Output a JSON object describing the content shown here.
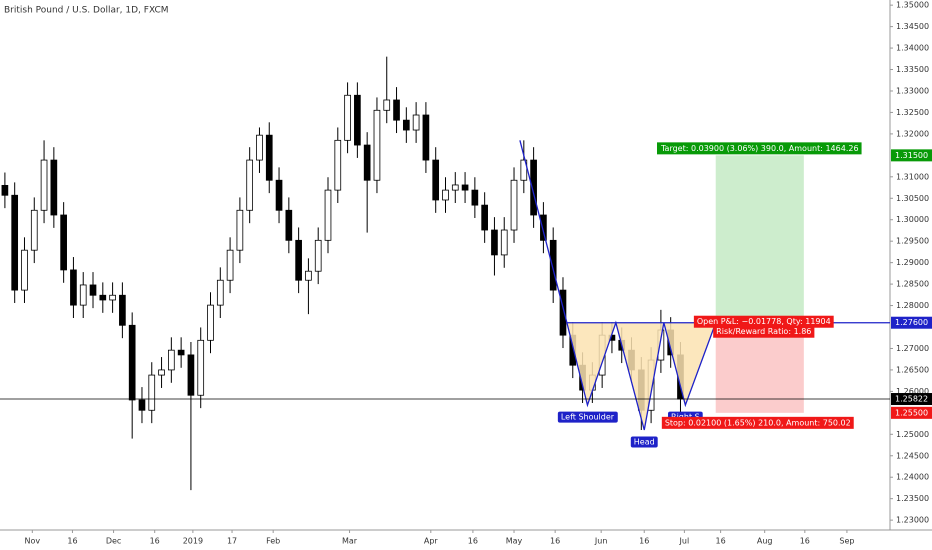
{
  "chart_data": {
    "type": "candlestick",
    "title": "British Pound / U.S. Dollar, 1D, FXCM",
    "open": [
      1.308,
      1.3057,
      1.2836,
      1.2929,
      1.3022,
      1.3139,
      1.3011,
      1.2883,
      1.2801,
      1.2848,
      1.2824,
      1.2813,
      1.2824,
      1.2754,
      1.258,
      1.2556,
      1.2638,
      1.265,
      1.2696,
      1.2685,
      1.2591,
      1.2719,
      1.2801,
      1.2859,
      1.2929,
      1.3022,
      1.3139,
      1.3197,
      1.3092,
      1.3022,
      1.2952,
      1.2859,
      1.288,
      1.2952,
      1.3069,
      1.3185,
      1.329,
      1.3174,
      1.3092,
      1.3255,
      1.3279,
      1.3232,
      1.3209,
      1.3244,
      1.3139,
      1.3046,
      1.3069,
      1.3081,
      1.3069,
      1.3034,
      1.2976,
      1.2918,
      1.2976,
      1.3092,
      1.3139,
      1.3011,
      1.2952,
      1.2836,
      1.2731,
      1.2661,
      1.2603,
      1.2638,
      1.2731,
      1.2719,
      1.2696,
      1.265,
      1.2556,
      1.2673,
      1.2743,
      1.2685
    ],
    "high": [
      1.311,
      1.3087,
      1.2959,
      1.3052,
      1.3185,
      1.3169,
      1.3041,
      1.2913,
      1.2878,
      1.2878,
      1.2854,
      1.2854,
      1.2854,
      1.2784,
      1.261,
      1.2668,
      1.268,
      1.2726,
      1.2726,
      1.2715,
      1.2749,
      1.2831,
      1.2889,
      1.2959,
      1.3052,
      1.3169,
      1.3215,
      1.3227,
      1.3122,
      1.3052,
      1.2982,
      1.291,
      1.2982,
      1.3099,
      1.3215,
      1.332,
      1.332,
      1.3204,
      1.3285,
      1.338,
      1.3309,
      1.3262,
      1.3274,
      1.3274,
      1.3169,
      1.3099,
      1.3111,
      1.3111,
      1.3099,
      1.3064,
      1.3006,
      1.3006,
      1.3122,
      1.3185,
      1.3169,
      1.3041,
      1.2982,
      1.2866,
      1.2761,
      1.2691,
      1.2668,
      1.2761,
      1.2761,
      1.2749,
      1.2726,
      1.268,
      1.2703,
      1.279,
      1.2773,
      1.2715
    ],
    "low": [
      1.3027,
      1.2806,
      1.2806,
      1.2899,
      1.2992,
      1.2981,
      1.2853,
      1.2771,
      1.2771,
      1.2794,
      1.2783,
      1.2783,
      1.2724,
      1.249,
      1.2526,
      1.2526,
      1.2608,
      1.262,
      1.2655,
      1.237,
      1.2561,
      1.2689,
      1.2771,
      1.2829,
      1.2899,
      1.2992,
      1.3109,
      1.3062,
      1.2992,
      1.2922,
      1.2829,
      1.278,
      1.285,
      1.2922,
      1.3039,
      1.3155,
      1.3144,
      1.297,
      1.3062,
      1.3225,
      1.3202,
      1.3179,
      1.3179,
      1.3109,
      1.3016,
      1.3016,
      1.3039,
      1.3039,
      1.3004,
      1.2946,
      1.287,
      1.2888,
      1.2946,
      1.3062,
      1.2981,
      1.2922,
      1.2806,
      1.2701,
      1.2631,
      1.2573,
      1.2573,
      1.2608,
      1.2689,
      1.2666,
      1.262,
      1.251,
      1.2526,
      1.2643,
      1.2655,
      1.2552
    ],
    "close": [
      1.3057,
      1.2836,
      1.2929,
      1.3022,
      1.3139,
      1.3011,
      1.2883,
      1.2801,
      1.2848,
      1.2824,
      1.2813,
      1.2824,
      1.2754,
      1.258,
      1.2556,
      1.2638,
      1.265,
      1.2696,
      1.2685,
      1.2591,
      1.2719,
      1.2801,
      1.2859,
      1.2929,
      1.3022,
      1.3139,
      1.3197,
      1.3092,
      1.3022,
      1.2952,
      1.2859,
      1.288,
      1.2952,
      1.3069,
      1.3185,
      1.329,
      1.3174,
      1.3092,
      1.3255,
      1.3279,
      1.3232,
      1.3209,
      1.3244,
      1.3139,
      1.3046,
      1.3069,
      1.3081,
      1.3069,
      1.3034,
      1.2976,
      1.2918,
      1.2976,
      1.3092,
      1.3139,
      1.3011,
      1.2952,
      1.2836,
      1.2731,
      1.2661,
      1.2603,
      1.2638,
      1.2731,
      1.2719,
      1.2696,
      1.265,
      1.2556,
      1.2673,
      1.2743,
      1.2685,
      1.2582
    ],
    "up_color": "#ffffff",
    "down_color": "#000000",
    "wick_color": "#000000",
    "xlim": [
      -0.5,
      90.4
    ],
    "xticks": [
      {
        "value": 2.8,
        "label": "Nov"
      },
      {
        "value": 6.9,
        "label": "16"
      },
      {
        "value": 11.1,
        "label": "Dec"
      },
      {
        "value": 15.3,
        "label": "16"
      },
      {
        "value": 19.2,
        "label": "2019"
      },
      {
        "value": 23.2,
        "label": "17"
      },
      {
        "value": 27.4,
        "label": "Feb"
      },
      {
        "value": 35.2,
        "label": "Mar"
      },
      {
        "value": 43.5,
        "label": "Apr"
      },
      {
        "value": 47.8,
        "label": "16"
      },
      {
        "value": 52.0,
        "label": "May"
      },
      {
        "value": 56.2,
        "label": "16"
      },
      {
        "value": 60.9,
        "label": "Jun"
      },
      {
        "value": 65.3,
        "label": "16"
      },
      {
        "value": 69.4,
        "label": "Jul"
      },
      {
        "value": 73.1,
        "label": "16"
      },
      {
        "value": 77.6,
        "label": "Aug"
      },
      {
        "value": 81.7,
        "label": "16"
      },
      {
        "value": 86.0,
        "label": "Sep"
      }
    ],
    "ylim": [
      1.2277,
      1.3512
    ],
    "yticks": [
      {
        "value": 1.23,
        "label": "1.23000"
      },
      {
        "value": 1.235,
        "label": "1.23500"
      },
      {
        "value": 1.24,
        "label": "1.24000"
      },
      {
        "value": 1.245,
        "label": "1.24500"
      },
      {
        "value": 1.25,
        "label": "1.25000"
      },
      {
        "value": 1.26,
        "label": "1.26000"
      },
      {
        "value": 1.265,
        "label": "1.26500"
      },
      {
        "value": 1.27,
        "label": "1.27000"
      },
      {
        "value": 1.28,
        "label": "1.28000"
      },
      {
        "value": 1.285,
        "label": "1.28500"
      },
      {
        "value": 1.29,
        "label": "1.29000"
      },
      {
        "value": 1.295,
        "label": "1.29500"
      },
      {
        "value": 1.3,
        "label": "1.30000"
      },
      {
        "value": 1.305,
        "label": "1.30500"
      },
      {
        "value": 1.31,
        "label": "1.31000"
      },
      {
        "value": 1.32,
        "label": "1.32000"
      },
      {
        "value": 1.325,
        "label": "1.32500"
      },
      {
        "value": 1.33,
        "label": "1.33000"
      },
      {
        "value": 1.335,
        "label": "1.33500"
      },
      {
        "value": 1.34,
        "label": "1.34000"
      },
      {
        "value": 1.345,
        "label": "1.34500"
      },
      {
        "value": 1.35,
        "label": "1.35000"
      }
    ],
    "grid": false,
    "pattern": {
      "x": [
        52.6,
        57.4,
        59.5,
        62.4,
        65.3,
        67.3,
        69.5,
        72.6
      ],
      "y": [
        1.3185,
        1.276,
        1.2568,
        1.276,
        1.251,
        1.276,
        1.2568,
        1.276
      ],
      "color": "#1e22c8",
      "fill": "#fbe3b1"
    },
    "pattern_labels": [
      "Left Shoulder",
      "Head",
      "Right S"
    ],
    "position": {
      "start": 72.6,
      "end": 81.6,
      "entry": {
        "value": 1.276,
        "label": "1.27600"
      },
      "target": {
        "value": 1.315,
        "label": "1.31500"
      },
      "stop": {
        "value": 1.255,
        "label": "1.25500"
      },
      "target_text": "Target: 0.03900 (3.06%) 390.0, Amount: 1464.26",
      "pnl_text": "Open P&L: −0.01778, Qty: 11904",
      "ratio_text": "Risk/Reward Ratio: 1.86",
      "stop_text": "Stop: 0.02100 (1.65%) 210.0, Amount: 750.02",
      "profit_color": "#c8ebc8",
      "loss_color": "#fbc6c6",
      "target_tag_color": "#089a08",
      "stop_tag_color": "#f01818"
    },
    "last_price": {
      "value": 1.25822,
      "label": "1.25822",
      "color": "#000000"
    }
  }
}
